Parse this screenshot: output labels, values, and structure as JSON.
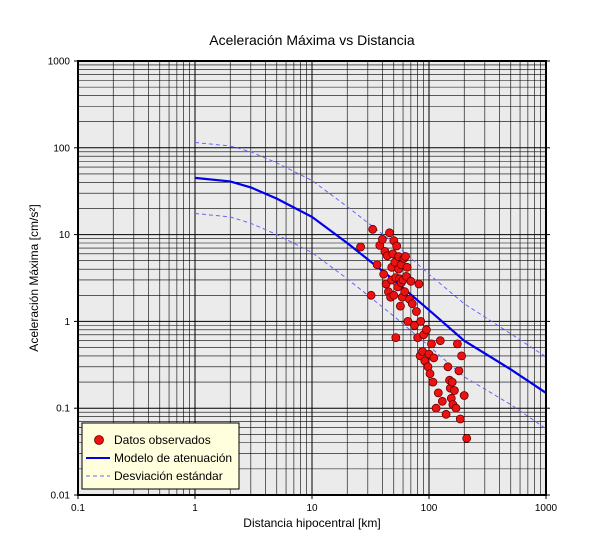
{
  "chart_data": {
    "type": "scatter",
    "title": "Aceleración Máxima vs Distancia",
    "xlabel": "Distancia hipocentral [km]",
    "ylabel": "Aceleración Máxima [cm/s²]",
    "xscale": "log",
    "yscale": "log",
    "xlim": [
      0.1,
      1000
    ],
    "ylim": [
      0.01,
      1000
    ],
    "x_ticks": [
      "0.1",
      "1",
      "10",
      "100",
      "1000"
    ],
    "y_ticks": [
      "0.01",
      "0.1",
      "1",
      "10",
      "100",
      "1000"
    ],
    "grid": true,
    "plot_background": "#ebebeb",
    "legend": {
      "position": "bottom-left",
      "background": "#ffffdd",
      "entries": [
        "Datos observados",
        "Modelo de atenuación",
        "Desviación estándar"
      ]
    },
    "series": [
      {
        "name": "Datos observados",
        "type": "scatter",
        "color": "#ee1111",
        "x": [
          33,
          36,
          38,
          40,
          41,
          42,
          43,
          44,
          45,
          46,
          47,
          48,
          48,
          49,
          50,
          50,
          51,
          52,
          53,
          54,
          55,
          55,
          56,
          57,
          58,
          58,
          59,
          60,
          61,
          62,
          63,
          64,
          65,
          66,
          68,
          70,
          72,
          75,
          78,
          80,
          82,
          84,
          85,
          88,
          90,
          92,
          95,
          98,
          100,
          102,
          105,
          108,
          110,
          115,
          120,
          125,
          130,
          140,
          145,
          150,
          152,
          155,
          158,
          160,
          165,
          170,
          175,
          180,
          185,
          190,
          200,
          210,
          26,
          32,
          52
        ],
        "y": [
          11.5,
          4.5,
          7.5,
          8.8,
          3.5,
          6.4,
          2.7,
          5.7,
          2.2,
          10.5,
          1.9,
          4.2,
          3.0,
          6.0,
          8.5,
          2.0,
          4.8,
          3.2,
          7.4,
          2.5,
          4.0,
          5.6,
          3.1,
          1.5,
          2.8,
          4.5,
          1.9,
          3.0,
          5.3,
          2.2,
          5.6,
          3.3,
          4.2,
          1.0,
          1.8,
          2.9,
          1.6,
          0.9,
          1.3,
          0.65,
          2.7,
          0.4,
          1.0,
          0.45,
          0.7,
          0.35,
          0.8,
          0.3,
          0.42,
          0.25,
          0.55,
          0.2,
          0.38,
          0.1,
          0.15,
          0.6,
          0.12,
          0.085,
          0.3,
          0.21,
          0.17,
          0.13,
          0.2,
          0.11,
          0.16,
          0.1,
          0.55,
          0.27,
          0.075,
          0.4,
          0.14,
          0.045,
          7.2,
          2.0,
          0.65
        ]
      },
      {
        "name": "Modelo de atenuación",
        "type": "line",
        "color": "#0000ee",
        "x": [
          1,
          2,
          3,
          5,
          10,
          20,
          50,
          100,
          200,
          500,
          1000
        ],
        "y": [
          45,
          41,
          35,
          26,
          16,
          8.0,
          3.0,
          1.35,
          0.6,
          0.28,
          0.15
        ]
      },
      {
        "name": "Desviación estándar",
        "type": "line",
        "color": "#6666ff",
        "dashed": true,
        "x": [
          1,
          2,
          3,
          5,
          10,
          20,
          50,
          100,
          200,
          500,
          1000
        ],
        "y": [
          115,
          105,
          90,
          67,
          42,
          21,
          8.0,
          3.5,
          1.6,
          0.72,
          0.39
        ]
      },
      {
        "name": "Desviación estándar",
        "type": "line",
        "color": "#6666ff",
        "dashed": true,
        "show_in_legend": false,
        "x": [
          1,
          2,
          3,
          5,
          10,
          20,
          50,
          100,
          200,
          500,
          1000
        ],
        "y": [
          17.5,
          16,
          13.5,
          10,
          6.2,
          3.1,
          1.15,
          0.52,
          0.23,
          0.11,
          0.058
        ]
      }
    ]
  }
}
